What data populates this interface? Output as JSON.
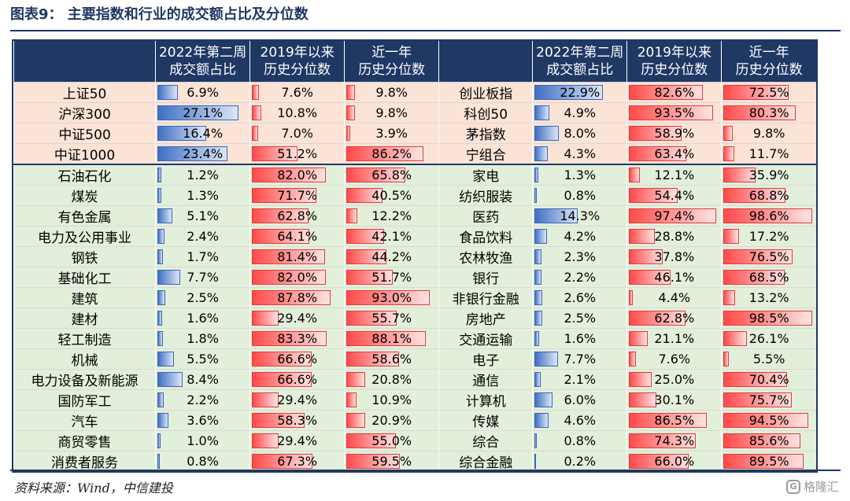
{
  "title": "图表9：  主要指数和行业的成交额占比及分位数",
  "headers": {
    "col1": "",
    "col2_line1": "2022年第二周",
    "col2_line2": "成交额占比",
    "col3_line1": "2019年以来",
    "col3_line2": "历史分位数",
    "col4_line1": "近一年",
    "col4_line2": "历史分位数"
  },
  "rows": [
    {
      "group": "index",
      "left": {
        "name": "上证50",
        "share": "6.9%",
        "since2019": "7.6%",
        "year": "9.8%"
      },
      "right": {
        "name": "创业板指",
        "share": "22.9%",
        "since2019": "82.6%",
        "year": "72.5%"
      }
    },
    {
      "group": "index",
      "left": {
        "name": "沪深300",
        "share": "27.1%",
        "since2019": "10.8%",
        "year": "9.8%"
      },
      "right": {
        "name": "科创50",
        "share": "4.9%",
        "since2019": "93.5%",
        "year": "80.3%"
      }
    },
    {
      "group": "index",
      "left": {
        "name": "中证500",
        "share": "16.4%",
        "since2019": "7.0%",
        "year": "3.9%"
      },
      "right": {
        "name": "茅指数",
        "share": "8.0%",
        "since2019": "58.9%",
        "year": "9.8%"
      }
    },
    {
      "group": "index",
      "left": {
        "name": "中证1000",
        "share": "23.4%",
        "since2019": "51.2%",
        "year": "86.2%"
      },
      "right": {
        "name": "宁组合",
        "share": "4.3%",
        "since2019": "63.4%",
        "year": "11.7%"
      }
    },
    {
      "group": "industry",
      "left": {
        "name": "石油石化",
        "share": "1.2%",
        "since2019": "82.0%",
        "year": "65.8%"
      },
      "right": {
        "name": "家电",
        "share": "1.3%",
        "since2019": "12.1%",
        "year": "35.9%"
      }
    },
    {
      "group": "industry",
      "left": {
        "name": "煤炭",
        "share": "1.3%",
        "since2019": "71.7%",
        "year": "40.5%"
      },
      "right": {
        "name": "纺织服装",
        "share": "0.8%",
        "since2019": "54.4%",
        "year": "68.8%"
      }
    },
    {
      "group": "industry",
      "left": {
        "name": "有色金属",
        "share": "5.1%",
        "since2019": "62.8%",
        "year": "12.2%"
      },
      "right": {
        "name": "医药",
        "share": "14.3%",
        "since2019": "97.4%",
        "year": "98.6%"
      }
    },
    {
      "group": "industry",
      "left": {
        "name": "电力及公用事业",
        "share": "2.4%",
        "since2019": "64.1%",
        "year": "42.1%"
      },
      "right": {
        "name": "食品饮料",
        "share": "4.2%",
        "since2019": "28.8%",
        "year": "17.2%"
      }
    },
    {
      "group": "industry",
      "left": {
        "name": "钢铁",
        "share": "1.7%",
        "since2019": "81.4%",
        "year": "44.2%"
      },
      "right": {
        "name": "农林牧渔",
        "share": "2.3%",
        "since2019": "37.8%",
        "year": "76.5%"
      }
    },
    {
      "group": "industry",
      "left": {
        "name": "基础化工",
        "share": "7.7%",
        "since2019": "82.0%",
        "year": "51.7%"
      },
      "right": {
        "name": "银行",
        "share": "2.2%",
        "since2019": "46.1%",
        "year": "68.5%"
      }
    },
    {
      "group": "industry",
      "left": {
        "name": "建筑",
        "share": "2.5%",
        "since2019": "87.8%",
        "year": "93.0%"
      },
      "right": {
        "name": "非银行金融",
        "share": "2.6%",
        "since2019": "4.4%",
        "year": "13.2%"
      }
    },
    {
      "group": "industry",
      "left": {
        "name": "建材",
        "share": "1.6%",
        "since2019": "29.4%",
        "year": "55.7%"
      },
      "right": {
        "name": "房地产",
        "share": "2.5%",
        "since2019": "62.8%",
        "year": "98.5%"
      }
    },
    {
      "group": "industry",
      "left": {
        "name": "轻工制造",
        "share": "1.8%",
        "since2019": "83.3%",
        "year": "88.1%"
      },
      "right": {
        "name": "交通运输",
        "share": "1.6%",
        "since2019": "21.1%",
        "year": "26.1%"
      }
    },
    {
      "group": "industry",
      "left": {
        "name": "机械",
        "share": "5.5%",
        "since2019": "66.6%",
        "year": "58.6%"
      },
      "right": {
        "name": "电子",
        "share": "7.7%",
        "since2019": "7.6%",
        "year": "5.5%"
      }
    },
    {
      "group": "industry",
      "left": {
        "name": "电力设备及新能源",
        "share": "8.4%",
        "since2019": "66.6%",
        "year": "20.8%"
      },
      "right": {
        "name": "通信",
        "share": "2.1%",
        "since2019": "25.0%",
        "year": "70.4%"
      }
    },
    {
      "group": "industry",
      "left": {
        "name": "国防军工",
        "share": "2.2%",
        "since2019": "29.4%",
        "year": "10.9%"
      },
      "right": {
        "name": "计算机",
        "share": "6.0%",
        "since2019": "30.1%",
        "year": "75.7%"
      }
    },
    {
      "group": "industry",
      "left": {
        "name": "汽车",
        "share": "3.6%",
        "since2019": "58.3%",
        "year": "20.9%"
      },
      "right": {
        "name": "传媒",
        "share": "4.6%",
        "since2019": "86.5%",
        "year": "94.5%"
      }
    },
    {
      "group": "industry",
      "left": {
        "name": "商贸零售",
        "share": "1.0%",
        "since2019": "29.4%",
        "year": "55.0%"
      },
      "right": {
        "name": "综合",
        "share": "0.8%",
        "since2019": "74.3%",
        "year": "85.6%"
      }
    },
    {
      "group": "industry",
      "left": {
        "name": "消费者服务",
        "share": "0.8%",
        "since2019": "67.3%",
        "year": "59.5%"
      },
      "right": {
        "name": "综合金融",
        "share": "0.2%",
        "since2019": "66.0%",
        "year": "89.5%"
      }
    }
  ],
  "share_bar_max_percent": 30,
  "percentile_bar_max_percent": 100,
  "source": "资料来源：Wind，中信建投",
  "watermark": "格隆汇",
  "watermark_icon_glyph": "G",
  "colors": {
    "header_bg": "#1f3864",
    "index_row_bg": "#fbe3d6",
    "industry_row_bg": "#e2efda",
    "share_bar": "#3f6fc4",
    "percentile_bar": "#ff4a4a"
  }
}
